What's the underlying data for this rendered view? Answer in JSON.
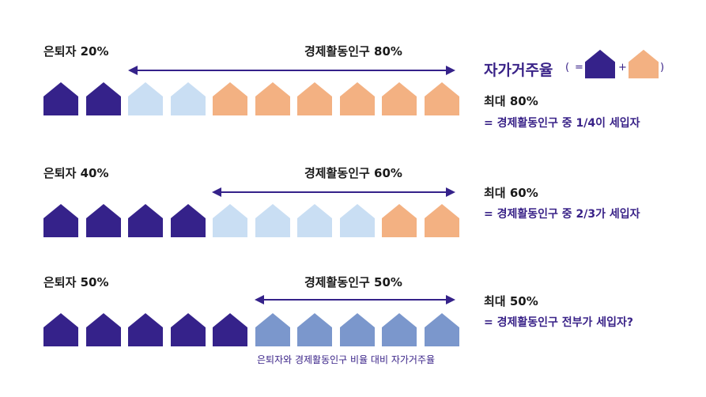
{
  "colors": {
    "retired": "#35228a",
    "renter": "#c9def3",
    "owner": "#f3b182",
    "ratio_owner": "#7b97cc",
    "arrow": "#35228a",
    "accent_text": "#3a2388"
  },
  "legend": {
    "title": "자가거주율",
    "open_paren": "(",
    "equals": "=",
    "plus": "+",
    "close_paren": ")"
  },
  "rows": [
    {
      "retired_label": "은퇴자 20%",
      "active_label": "경제활동인구 80%",
      "houses": [
        "retired",
        "retired",
        "renter",
        "renter",
        "owner",
        "owner",
        "owner",
        "owner",
        "owner",
        "owner"
      ],
      "max_label": "최대 80%",
      "desc": "= 경제활동인구 중 1/4이 세입자"
    },
    {
      "retired_label": "은퇴자 40%",
      "active_label": "경제활동인구 60%",
      "houses": [
        "retired",
        "retired",
        "retired",
        "retired",
        "renter",
        "renter",
        "renter",
        "renter",
        "owner",
        "owner"
      ],
      "max_label": "최대 60%",
      "desc": "= 경제활동인구 중 2/3가 세입자"
    },
    {
      "retired_label": "은퇴자 50%",
      "active_label": "경제활동인구 50%",
      "houses": [
        "retired",
        "retired",
        "retired",
        "retired",
        "retired",
        "ratio_owner",
        "ratio_owner",
        "ratio_owner",
        "ratio_owner",
        "ratio_owner"
      ],
      "max_label": "최대 50%",
      "desc": "= 경제활동인구 전부가 세입자?",
      "caption": "은퇴자와 경제활동인구 비율 대비 자가거주율"
    }
  ]
}
